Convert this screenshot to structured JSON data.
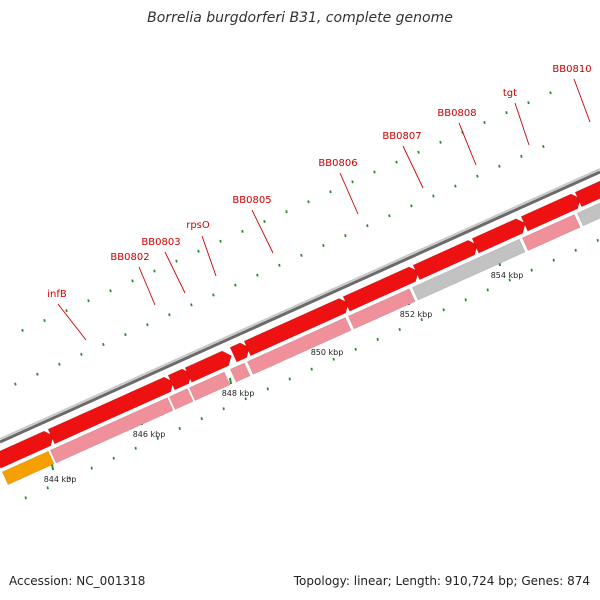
{
  "title": "Borrelia burgdorferi B31, complete genome",
  "footer": {
    "accession": "Accession: NC_001318",
    "stats": "Topology: linear; Length: 910,724 bp; Genes: 874"
  },
  "colors": {
    "cds": "#ee1111",
    "gene": "#f0909a",
    "gene_gray": "#c2c2c2",
    "orange": "#f5a000",
    "backbone": "#888888",
    "tick": "#2a8a2a",
    "label": "#cc0000"
  },
  "ticks": [
    {
      "label": "844 kbp"
    },
    {
      "label": "846 kbp"
    },
    {
      "label": "848 kbp"
    },
    {
      "label": "850 kbp"
    },
    {
      "label": "852 kbp"
    },
    {
      "label": "854 kbp"
    }
  ],
  "genes": [
    {
      "label": "infB"
    },
    {
      "label": "BB0802"
    },
    {
      "label": "BB0803"
    },
    {
      "label": "rpsO"
    },
    {
      "label": "BB0805"
    },
    {
      "label": "BB0806"
    },
    {
      "label": "BB0807"
    },
    {
      "label": "BB0808"
    },
    {
      "label": "tgt"
    },
    {
      "label": "BB0810"
    }
  ]
}
